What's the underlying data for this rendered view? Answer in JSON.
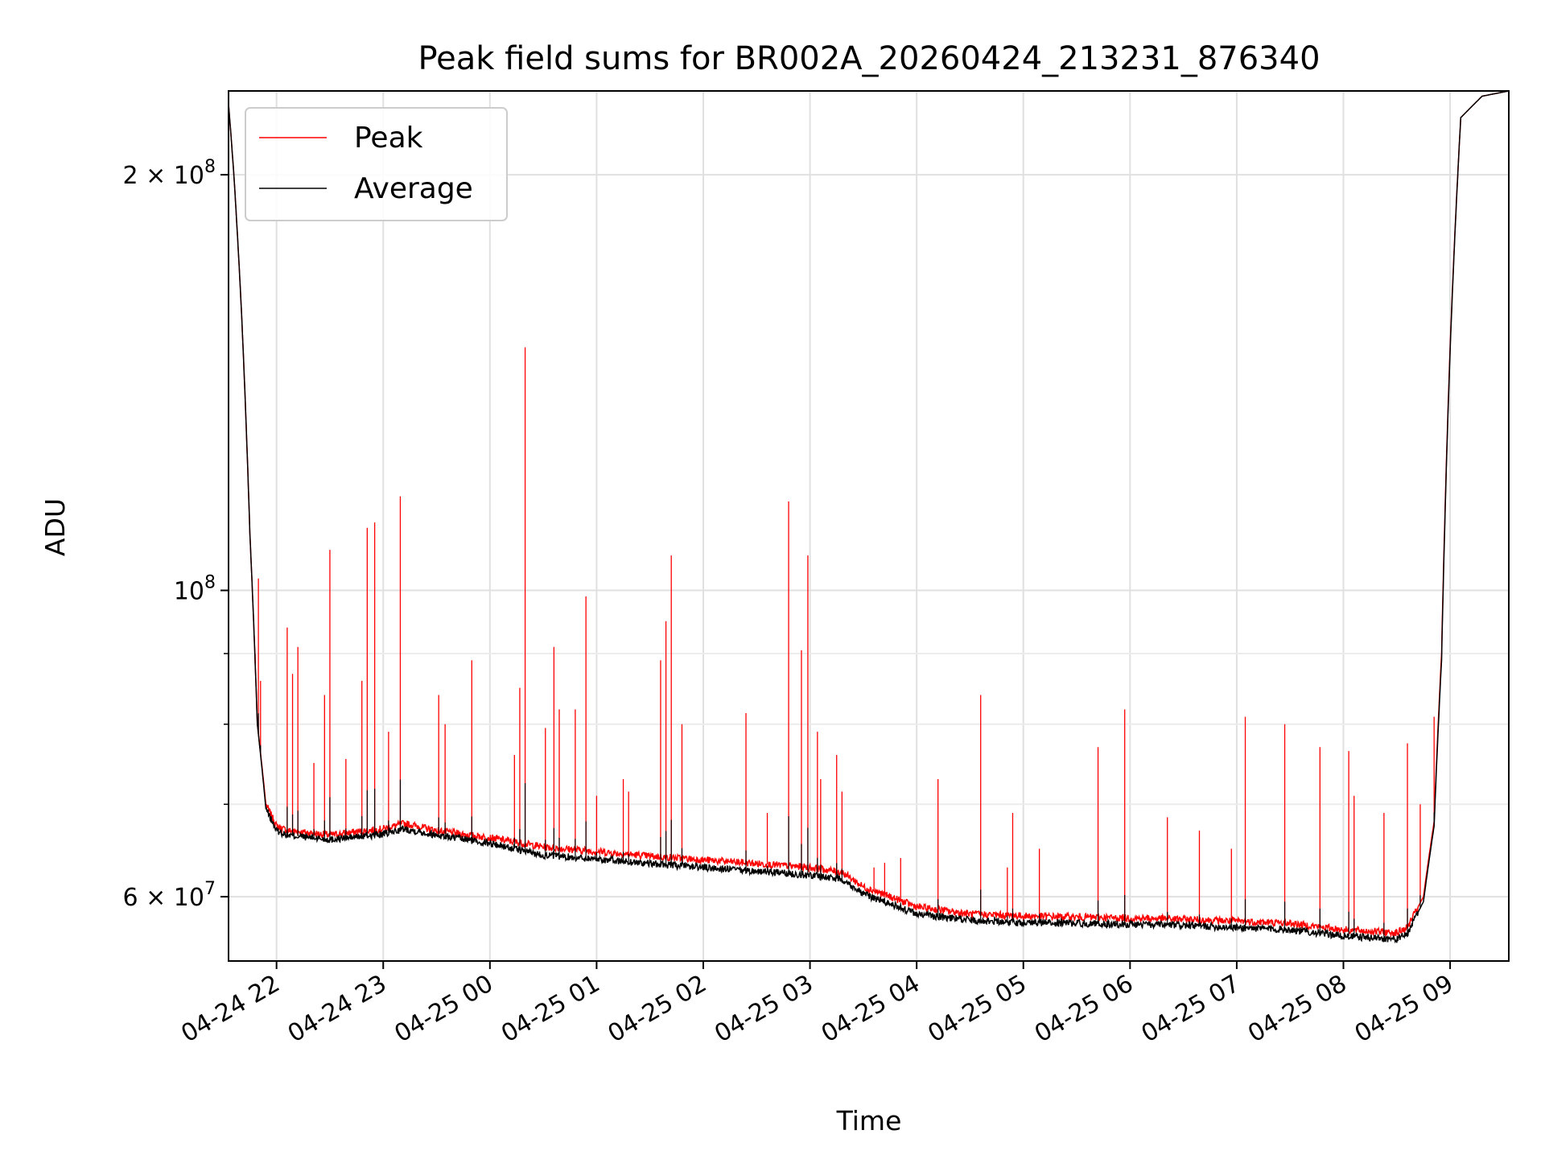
{
  "chart_data": {
    "type": "line",
    "title": "Peak field sums for BR002A_20260424_213231_876340",
    "xlabel": "Time",
    "ylabel": "ADU",
    "yscale": "log",
    "xlim": [
      -0.45,
      11.55
    ],
    "ylim": [
      53900000,
      230000000
    ],
    "grid": true,
    "legend_location": "top-left",
    "x_ticks": [
      {
        "value": 0,
        "label": "04-24 22"
      },
      {
        "value": 1,
        "label": "04-24 23"
      },
      {
        "value": 2,
        "label": "04-25 00"
      },
      {
        "value": 3,
        "label": "04-25 01"
      },
      {
        "value": 4,
        "label": "04-25 02"
      },
      {
        "value": 5,
        "label": "04-25 03"
      },
      {
        "value": 6,
        "label": "04-25 04"
      },
      {
        "value": 7,
        "label": "04-25 05"
      },
      {
        "value": 8,
        "label": "04-25 06"
      },
      {
        "value": 9,
        "label": "04-25 07"
      },
      {
        "value": 10,
        "label": "04-25 08"
      },
      {
        "value": 11,
        "label": "04-25 09"
      }
    ],
    "y_ticks": [
      {
        "value": 200000000,
        "mantissa": "2 × 10",
        "exp": "8"
      },
      {
        "value": 100000000,
        "mantissa": "10",
        "exp": "8"
      },
      {
        "value": 60000000,
        "mantissa": "6 × 10",
        "exp": "7"
      }
    ],
    "y_minor_ticks": [
      70000000,
      80000000,
      90000000
    ],
    "series": [
      {
        "name": "Peak",
        "color": "#ff0000",
        "baseline": [
          [
            -0.45,
            225000000
          ],
          [
            -0.4,
            200000000
          ],
          [
            -0.33,
            160000000
          ],
          [
            -0.25,
            110000000
          ],
          [
            -0.18,
            80000000
          ],
          [
            -0.1,
            70000000
          ],
          [
            0.0,
            67500000
          ],
          [
            0.1,
            67000000
          ],
          [
            0.5,
            66500000
          ],
          [
            1.0,
            67200000
          ],
          [
            1.2,
            67800000
          ],
          [
            1.5,
            67000000
          ],
          [
            2.0,
            66200000
          ],
          [
            2.5,
            65200000
          ],
          [
            3.0,
            64700000
          ],
          [
            3.5,
            64200000
          ],
          [
            4.0,
            63800000
          ],
          [
            4.5,
            63400000
          ],
          [
            5.0,
            63000000
          ],
          [
            5.3,
            62500000
          ],
          [
            5.5,
            61000000
          ],
          [
            6.0,
            59000000
          ],
          [
            6.5,
            58300000
          ],
          [
            7.0,
            58100000
          ],
          [
            7.5,
            58000000
          ],
          [
            8.0,
            57900000
          ],
          [
            8.5,
            57800000
          ],
          [
            9.0,
            57600000
          ],
          [
            9.5,
            57400000
          ],
          [
            10.0,
            56800000
          ],
          [
            10.5,
            56500000
          ],
          [
            10.6,
            57000000
          ],
          [
            10.75,
            60000000
          ],
          [
            10.85,
            68000000
          ],
          [
            10.92,
            90000000
          ],
          [
            11.0,
            150000000
          ],
          [
            11.1,
            220000000
          ],
          [
            11.3,
            228000000
          ],
          [
            11.55,
            230000000
          ]
        ],
        "spikes": [
          [
            -0.17,
            102000000
          ],
          [
            -0.2,
            90000000
          ],
          [
            -0.15,
            86000000
          ],
          [
            0.1,
            94000000
          ],
          [
            0.15,
            87000000
          ],
          [
            0.2,
            91000000
          ],
          [
            0.35,
            75000000
          ],
          [
            0.45,
            84000000
          ],
          [
            0.5,
            107000000
          ],
          [
            0.65,
            75500000
          ],
          [
            0.8,
            86000000
          ],
          [
            0.85,
            111000000
          ],
          [
            0.92,
            112000000
          ],
          [
            1.05,
            79000000
          ],
          [
            1.16,
            117000000
          ],
          [
            1.52,
            84000000
          ],
          [
            1.58,
            80000000
          ],
          [
            1.83,
            89000000
          ],
          [
            2.23,
            76000000
          ],
          [
            2.28,
            85000000
          ],
          [
            2.33,
            150000000
          ],
          [
            2.52,
            79500000
          ],
          [
            2.6,
            91000000
          ],
          [
            2.65,
            82000000
          ],
          [
            2.8,
            82000000
          ],
          [
            2.9,
            99000000
          ],
          [
            3.0,
            71000000
          ],
          [
            3.25,
            73000000
          ],
          [
            3.3,
            71500000
          ],
          [
            3.6,
            89000000
          ],
          [
            3.65,
            95000000
          ],
          [
            3.7,
            106000000
          ],
          [
            3.8,
            80000000
          ],
          [
            4.4,
            81500000
          ],
          [
            4.6,
            69000000
          ],
          [
            4.8,
            116000000
          ],
          [
            4.92,
            90500000
          ],
          [
            4.98,
            106000000
          ],
          [
            5.07,
            79000000
          ],
          [
            5.1,
            73000000
          ],
          [
            5.25,
            76000000
          ],
          [
            5.3,
            71500000
          ],
          [
            5.6,
            63000000
          ],
          [
            5.7,
            63500000
          ],
          [
            5.85,
            64000000
          ],
          [
            6.2,
            73000000
          ],
          [
            6.6,
            84000000
          ],
          [
            6.85,
            63000000
          ],
          [
            6.9,
            69000000
          ],
          [
            7.15,
            65000000
          ],
          [
            7.7,
            77000000
          ],
          [
            7.95,
            82000000
          ],
          [
            8.35,
            68500000
          ],
          [
            8.65,
            67000000
          ],
          [
            8.95,
            65000000
          ],
          [
            9.08,
            81000000
          ],
          [
            9.45,
            80000000
          ],
          [
            9.78,
            77000000
          ],
          [
            10.05,
            76500000
          ],
          [
            10.1,
            71000000
          ],
          [
            10.38,
            69000000
          ],
          [
            10.6,
            77500000
          ],
          [
            10.72,
            70000000
          ],
          [
            10.85,
            81000000
          ]
        ]
      },
      {
        "name": "Average",
        "color": "#000000",
        "baseline": [
          [
            -0.45,
            225000000
          ],
          [
            -0.4,
            200000000
          ],
          [
            -0.33,
            160000000
          ],
          [
            -0.25,
            110000000
          ],
          [
            -0.18,
            80000000
          ],
          [
            -0.1,
            69500000
          ],
          [
            0.0,
            67000000
          ],
          [
            0.1,
            66500000
          ],
          [
            0.5,
            66000000
          ],
          [
            1.0,
            66600000
          ],
          [
            1.2,
            67200000
          ],
          [
            1.5,
            66500000
          ],
          [
            2.0,
            65600000
          ],
          [
            2.5,
            64300000
          ],
          [
            3.0,
            63900000
          ],
          [
            3.5,
            63400000
          ],
          [
            4.0,
            63000000
          ],
          [
            4.5,
            62600000
          ],
          [
            5.0,
            62200000
          ],
          [
            5.3,
            61800000
          ],
          [
            5.5,
            60300000
          ],
          [
            6.0,
            58300000
          ],
          [
            6.5,
            57700000
          ],
          [
            7.0,
            57500000
          ],
          [
            7.5,
            57400000
          ],
          [
            8.0,
            57300000
          ],
          [
            8.5,
            57200000
          ],
          [
            9.0,
            57000000
          ],
          [
            9.5,
            56800000
          ],
          [
            10.0,
            56200000
          ],
          [
            10.5,
            55900000
          ],
          [
            10.6,
            56400000
          ],
          [
            10.75,
            59500000
          ],
          [
            10.85,
            67500000
          ],
          [
            10.92,
            89000000
          ],
          [
            11.0,
            149000000
          ],
          [
            11.1,
            220000000
          ],
          [
            11.3,
            228000000
          ],
          [
            11.55,
            230000000
          ]
        ]
      }
    ]
  }
}
